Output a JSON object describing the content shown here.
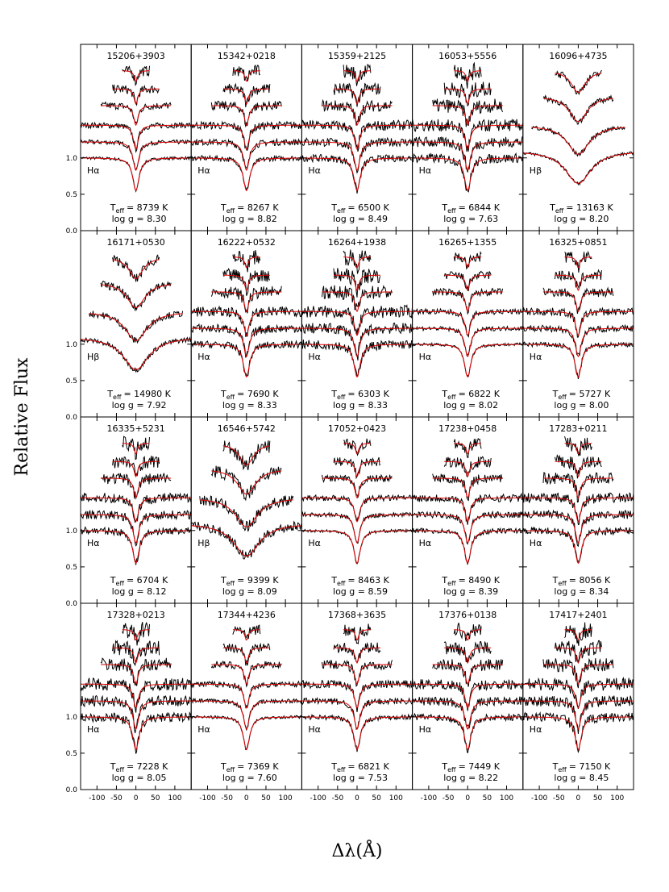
{
  "chart_data": {
    "type": "line",
    "xlabel": "Δλ(Å)",
    "ylabel": "Relative Flux",
    "teff_symbol": "T",
    "teff_subscript": "eff",
    "xlim": [
      -142,
      142
    ],
    "xticks": [
      -100,
      -50,
      0,
      50,
      100
    ],
    "ylim": [
      0,
      2.56
    ],
    "yticks": [
      {
        "value": 0,
        "label": "0.0"
      },
      {
        "value": 0.5,
        "label": "0.5"
      },
      {
        "value": 1.0,
        "label": "1.0"
      }
    ],
    "model_color": "#e00000",
    "data_color": "#000000",
    "panels": [
      {
        "title": "15206+3903",
        "teff": "= 8739 K",
        "logg": "log g = 8.30",
        "line": "Hα"
      },
      {
        "title": "15342+0218",
        "teff": "= 8267 K",
        "logg": "log g = 8.82",
        "line": "Hα"
      },
      {
        "title": "15359+2125",
        "teff": "= 6500 K",
        "logg": "log g = 8.49",
        "line": "Hα"
      },
      {
        "title": "16053+5556",
        "teff": "= 6844 K",
        "logg": "log g = 7.63",
        "line": "Hα"
      },
      {
        "title": "16096+4735",
        "teff": "= 13163 K",
        "logg": "log g = 8.20",
        "line": "Hβ"
      },
      {
        "title": "16171+0530",
        "teff": "= 14980 K",
        "logg": "log g = 7.92",
        "line": "Hβ"
      },
      {
        "title": "16222+0532",
        "teff": "= 7690 K",
        "logg": "log g = 8.33",
        "line": "Hα"
      },
      {
        "title": "16264+1938",
        "teff": "= 6303 K",
        "logg": "log g = 8.33",
        "line": "Hα"
      },
      {
        "title": "16265+1355",
        "teff": "= 6822 K",
        "logg": "log g = 8.02",
        "line": "Hα"
      },
      {
        "title": "16325+0851",
        "teff": "= 5727 K",
        "logg": "log g = 8.00",
        "line": "Hα"
      },
      {
        "title": "16335+5231",
        "teff": "= 6704 K",
        "logg": "log g = 8.12",
        "line": "Hα"
      },
      {
        "title": "16546+5742",
        "teff": "= 9399 K",
        "logg": "log g = 8.09",
        "line": "Hβ"
      },
      {
        "title": "17052+0423",
        "teff": "= 8463 K",
        "logg": "log g = 8.59",
        "line": "Hα"
      },
      {
        "title": "17238+0458",
        "teff": "= 8490 K",
        "logg": "log g = 8.39",
        "line": "Hα"
      },
      {
        "title": "17283+0211",
        "teff": "= 8056 K",
        "logg": "log g = 8.34",
        "line": "Hα"
      },
      {
        "title": "17328+0213",
        "teff": "= 7228 K",
        "logg": "log g = 8.05",
        "line": "Hα"
      },
      {
        "title": "17344+4236",
        "teff": "= 7369 K",
        "logg": "log g = 7.60",
        "line": "Hα"
      },
      {
        "title": "17368+3635",
        "teff": "= 6821 K",
        "logg": "log g = 7.53",
        "line": "Hα"
      },
      {
        "title": "17376+0138",
        "teff": "= 7449 K",
        "logg": "log g = 8.22",
        "line": "Hα"
      },
      {
        "title": "17417+2401",
        "teff": "= 7150 K",
        "logg": "log g = 8.45",
        "line": "Hα"
      }
    ]
  }
}
